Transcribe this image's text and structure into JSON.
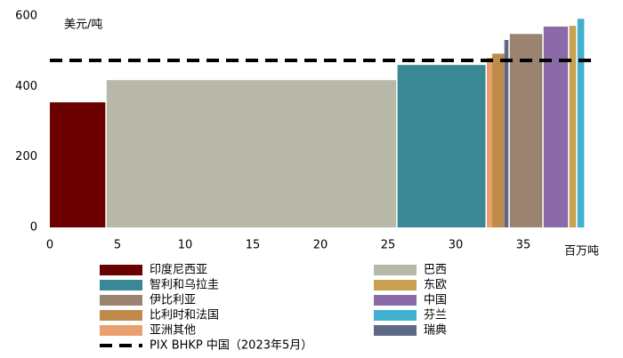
{
  "chart_data": {
    "type": "cost_curve",
    "y_label": "美元/吨",
    "x_label": "百万吨",
    "xlim": [
      0,
      40
    ],
    "xticks": [
      0,
      5,
      10,
      15,
      20,
      25,
      30,
      35
    ],
    "ylim": [
      0,
      600
    ],
    "yticks": [
      0,
      200,
      400,
      600
    ],
    "series": [
      {
        "name": "印度尼西亚",
        "color": "#6b0000",
        "x_start": 0,
        "x_end": 4.1,
        "value": 355
      },
      {
        "name": "智利和乌拉圭",
        "color": "#3a8796",
        "x_start": 25.7,
        "x_end": 32.2,
        "value": 461
      },
      {
        "name": "伊比利亚",
        "color": "#9a8470",
        "x_start": 34.0,
        "x_end": 36.4,
        "value": 549
      },
      {
        "name": "比利时和法国",
        "color": "#c08a4a",
        "x_start": 32.7,
        "x_end": 33.6,
        "value": 493
      },
      {
        "name": "亚洲其他",
        "color": "#e8a070",
        "x_start": 32.3,
        "x_end": 32.7,
        "value": 481
      },
      {
        "name": "巴西",
        "color": "#b8b8a8",
        "x_start": 4.2,
        "x_end": 25.6,
        "value": 418
      },
      {
        "name": "东欧",
        "color": "#c8a050",
        "x_start": 38.4,
        "x_end": 38.9,
        "value": 572
      },
      {
        "name": "中国",
        "color": "#8a6aa8",
        "x_start": 36.5,
        "x_end": 38.3,
        "value": 570
      },
      {
        "name": "芬兰",
        "color": "#40b0d0",
        "x_start": 39.0,
        "x_end": 39.5,
        "value": 592
      },
      {
        "name": "瑞典",
        "color": "#606888",
        "x_start": 33.6,
        "x_end": 33.9,
        "value": 532
      }
    ],
    "reference_line": {
      "name": "PIX BHKP 中国（2023年5月）",
      "value": 474,
      "color": "#000000"
    }
  }
}
